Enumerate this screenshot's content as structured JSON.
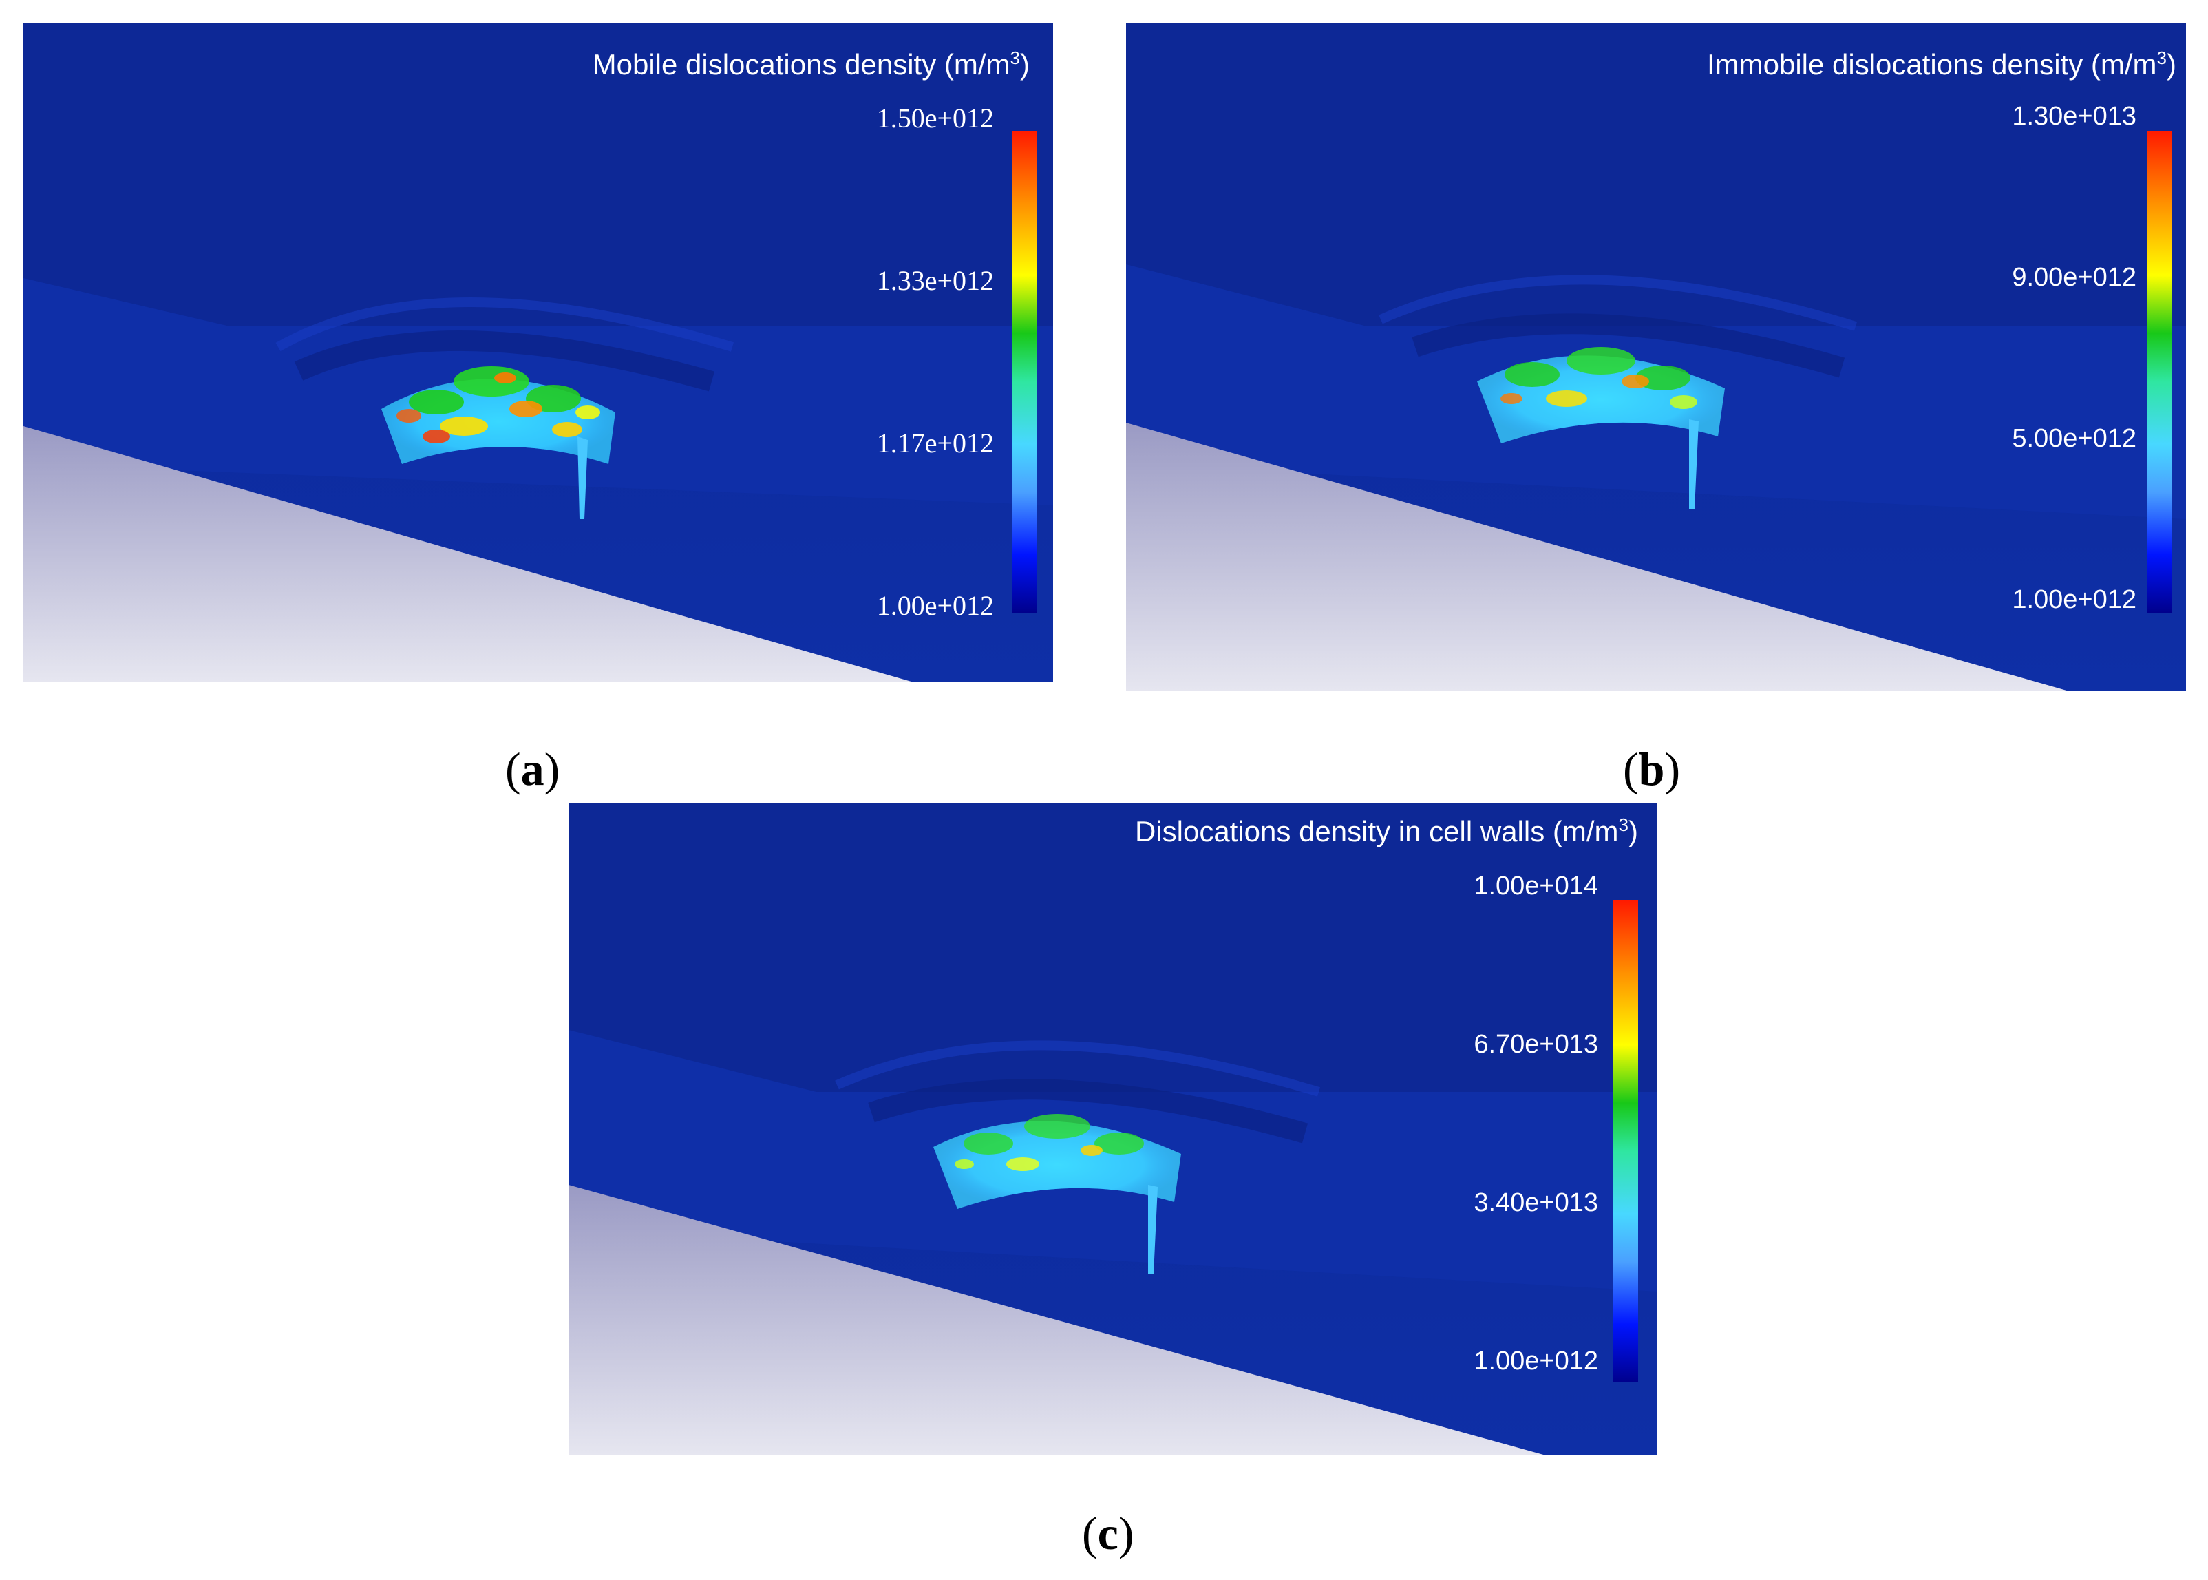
{
  "colors": {
    "background_blue": "#0d2a9e",
    "deep_blue": "#0b1f80",
    "base_plate": "#c4c4dc",
    "colormap": [
      "#0000c8",
      "#0a3cff",
      "#48d2ff",
      "#3cff8c",
      "#1fd41f",
      "#ffff00",
      "#ff9600",
      "#ff1e00"
    ]
  },
  "panels": [
    {
      "id": "a",
      "title_main": "Mobile dislocations density (m/m",
      "title_sup": "3",
      "title_tail": ")",
      "ticks": [
        "1.50e+012",
        "1.33e+012",
        "1.17e+012",
        "1.00e+012"
      ],
      "caption": "a"
    },
    {
      "id": "b",
      "title_main": "Immobile dislocations density (m/m",
      "title_sup": "3",
      "title_tail": ")",
      "ticks": [
        "1.30e+013",
        "9.00e+012",
        "5.00e+012",
        "1.00e+012"
      ],
      "caption": "b"
    },
    {
      "id": "c",
      "title_main": "Dislocations density in cell walls (m/m",
      "title_sup": "3",
      "title_tail": ")",
      "ticks": [
        "1.00e+014",
        "6.70e+013",
        "3.40e+013",
        "1.00e+012"
      ],
      "caption": "c"
    }
  ]
}
